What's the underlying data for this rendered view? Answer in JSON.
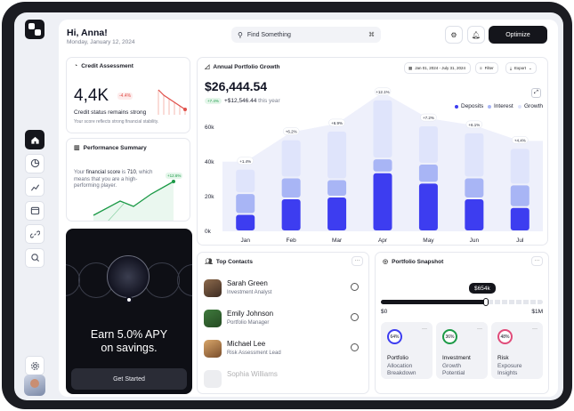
{
  "header": {
    "greeting": "Hi, Anna!",
    "date": "Monday, January 12, 2024",
    "search_placeholder": "Find Something",
    "search_shortcut": "⌘",
    "optimize_label": "Optimize"
  },
  "sidebar": {
    "items": [
      {
        "icon": "home-icon"
      },
      {
        "icon": "pie-chart-icon"
      },
      {
        "icon": "line-chart-icon"
      },
      {
        "icon": "calendar-icon"
      },
      {
        "icon": "link-icon"
      },
      {
        "icon": "zoom-icon"
      }
    ]
  },
  "credit": {
    "title": "Credit Assessment",
    "value": "4,4K",
    "change": "-4.4%",
    "status": "Credit status remains strong",
    "desc": "Your score reflects strong financial stability."
  },
  "performance": {
    "title": "Performance Summary",
    "text_prefix": "Your ",
    "text_bold": "financial score",
    "text_mid": " is ",
    "text_value": "710",
    "text_suffix": ", which means that you are a high-performing player.",
    "badge": "+12.6%"
  },
  "promo": {
    "line1": "Earn 5.0% APY",
    "line2": "on savings.",
    "cta": "Get Started"
  },
  "growth": {
    "title": "Annual Portfolio Growth",
    "date_range": "Jan 01, 2024 - July 31, 2024",
    "filter": "Filter",
    "export": "Export",
    "amount": "$26,444.54",
    "chip": "+7.4%",
    "change": "+$12,546.44",
    "change_suffix": "this year",
    "legend": [
      "Deposits",
      "Interest",
      "Growth"
    ],
    "colors": {
      "deposits": "#3d3df0",
      "interest": "#a8b5f5",
      "growth": "#dfe4fb",
      "band": "#eef0fb"
    }
  },
  "chart_data": {
    "type": "bar",
    "categories": [
      "Jan",
      "Feb",
      "Mar",
      "Apr",
      "May",
      "Jun",
      "Jul"
    ],
    "y_ticks": [
      "60k",
      "40k",
      "20k",
      "0k"
    ],
    "ylim": [
      0,
      60
    ],
    "series": [
      {
        "name": "Deposits",
        "values": [
          10,
          19,
          20,
          34,
          28,
          19,
          14
        ]
      },
      {
        "name": "Interest",
        "values": [
          12,
          12,
          10,
          8,
          11,
          12,
          13
        ]
      },
      {
        "name": "Growth",
        "values": [
          14,
          22,
          28,
          34,
          22,
          26,
          21
        ]
      }
    ],
    "labels": [
      "+1.4%",
      "+6.2%",
      "+6.9%",
      "+12.1%",
      "+7.2%",
      "+6.1%",
      "+4.4%"
    ]
  },
  "contacts": {
    "title": "Top Contacts",
    "items": [
      {
        "name": "Sarah Green",
        "role": "Investment Analyst"
      },
      {
        "name": "Emily Johnson",
        "role": "Portfolio Manager"
      },
      {
        "name": "Michael Lee",
        "role": "Risk Assessment Lead"
      },
      {
        "name": "Sophia Williams",
        "role": ""
      }
    ]
  },
  "snapshot": {
    "title": "Portfolio Snapshot",
    "tooltip": "$654k",
    "min": "$0",
    "max": "$1M",
    "progress": 0.65,
    "cards": [
      {
        "pct": "64%",
        "title": "Portfolio",
        "sub1": "Allocation",
        "sub2": "Breakdown",
        "color": "#3d3df0"
      },
      {
        "pct": "36%",
        "title": "Investment",
        "sub1": "Growth",
        "sub2": "Potential",
        "color": "#1c9a47"
      },
      {
        "pct": "48%",
        "title": "Risk",
        "sub1": "Exposure",
        "sub2": "Insights",
        "color": "#e04c7a"
      }
    ]
  }
}
